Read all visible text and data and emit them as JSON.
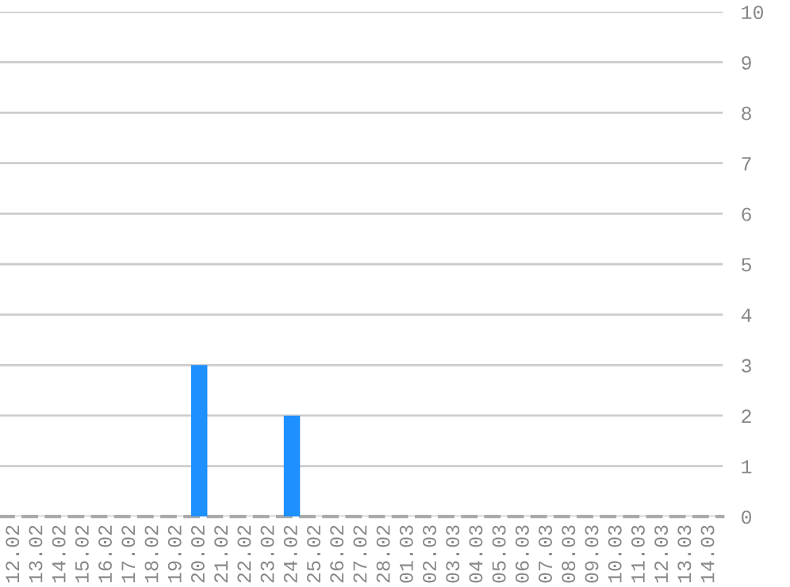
{
  "chart_data": {
    "type": "bar",
    "categories": [
      "12.02",
      "13.02",
      "14.02",
      "15.02",
      "16.02",
      "17.02",
      "18.02",
      "19.02",
      "20.02",
      "21.02",
      "22.02",
      "23.02",
      "24.02",
      "25.02",
      "26.02",
      "27.02",
      "28.02",
      "01.03",
      "02.03",
      "03.03",
      "04.03",
      "05.03",
      "06.03",
      "07.03",
      "08.03",
      "09.03",
      "10.03",
      "11.03",
      "12.03",
      "13.03",
      "14.03"
    ],
    "values": [
      0,
      0,
      0,
      0,
      0,
      0,
      0,
      0,
      3,
      0,
      0,
      0,
      2,
      0,
      0,
      0,
      0,
      0,
      0,
      0,
      0,
      0,
      0,
      0,
      0,
      0,
      0,
      0,
      0,
      0,
      0
    ],
    "color": "#1e90ff",
    "ylim": [
      0,
      10
    ],
    "yticks": [
      0,
      1,
      2,
      3,
      4,
      5,
      6,
      7,
      8,
      9,
      10
    ],
    "grid": "y",
    "legend": false
  }
}
